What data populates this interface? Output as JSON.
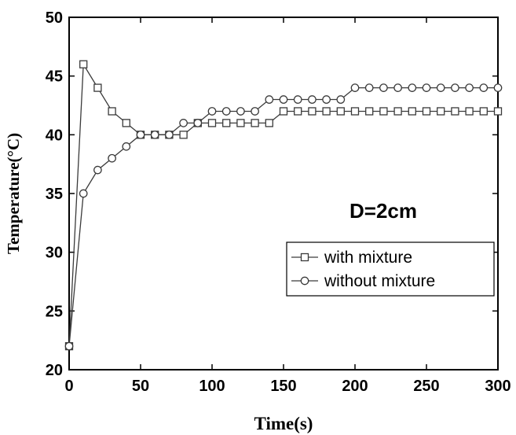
{
  "chart_data": {
    "type": "line",
    "title": "",
    "xlabel": "Time(s)",
    "ylabel": "Temperature(°C)",
    "xlim": [
      0,
      300
    ],
    "ylim": [
      20,
      50
    ],
    "xticks": [
      0,
      50,
      100,
      150,
      200,
      250,
      300
    ],
    "yticks": [
      20,
      25,
      30,
      35,
      40,
      45,
      50
    ],
    "grid": false,
    "legend_position": "lower-right",
    "annotation": "D=2cm",
    "series": [
      {
        "name": "with mixture",
        "marker": "square",
        "color": "#3a3a3a",
        "points": [
          [
            0,
            22
          ],
          [
            10,
            46
          ],
          [
            20,
            44
          ],
          [
            30,
            42
          ],
          [
            40,
            41
          ],
          [
            50,
            40
          ],
          [
            60,
            40
          ],
          [
            70,
            40
          ],
          [
            80,
            40
          ],
          [
            90,
            41
          ],
          [
            100,
            41
          ],
          [
            110,
            41
          ],
          [
            120,
            41
          ],
          [
            130,
            41
          ],
          [
            140,
            41
          ],
          [
            150,
            42
          ],
          [
            160,
            42
          ],
          [
            170,
            42
          ],
          [
            180,
            42
          ],
          [
            190,
            42
          ],
          [
            200,
            42
          ],
          [
            210,
            42
          ],
          [
            220,
            42
          ],
          [
            230,
            42
          ],
          [
            240,
            42
          ],
          [
            250,
            42
          ],
          [
            260,
            42
          ],
          [
            270,
            42
          ],
          [
            280,
            42
          ],
          [
            290,
            42
          ],
          [
            300,
            42
          ]
        ]
      },
      {
        "name": "without mixture",
        "marker": "circle",
        "color": "#3a3a3a",
        "points": [
          [
            0,
            22
          ],
          [
            10,
            35
          ],
          [
            20,
            37
          ],
          [
            30,
            38
          ],
          [
            40,
            39
          ],
          [
            50,
            40
          ],
          [
            60,
            40
          ],
          [
            70,
            40
          ],
          [
            80,
            41
          ],
          [
            90,
            41
          ],
          [
            100,
            42
          ],
          [
            110,
            42
          ],
          [
            120,
            42
          ],
          [
            130,
            42
          ],
          [
            140,
            43
          ],
          [
            150,
            43
          ],
          [
            160,
            43
          ],
          [
            170,
            43
          ],
          [
            180,
            43
          ],
          [
            190,
            43
          ],
          [
            200,
            44
          ],
          [
            210,
            44
          ],
          [
            220,
            44
          ],
          [
            230,
            44
          ],
          [
            240,
            44
          ],
          [
            250,
            44
          ],
          [
            260,
            44
          ],
          [
            270,
            44
          ],
          [
            280,
            44
          ],
          [
            290,
            44
          ],
          [
            300,
            44
          ]
        ]
      }
    ]
  }
}
